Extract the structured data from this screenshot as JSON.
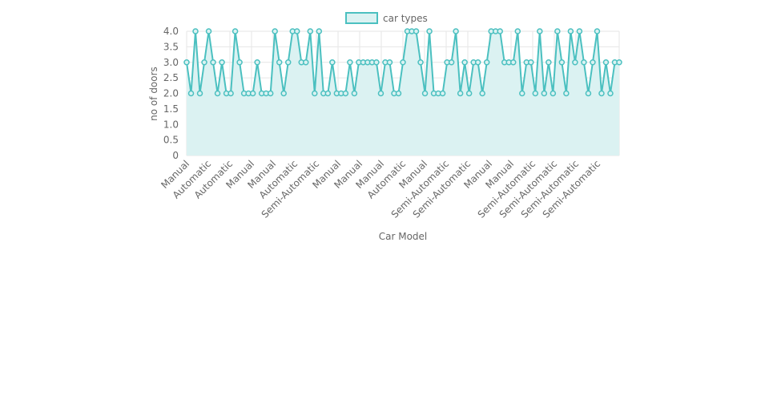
{
  "chart_data": {
    "type": "area",
    "legend": {
      "label": "car types",
      "position": "top-center"
    },
    "xlabel": "Car Model",
    "ylabel": "no of doors",
    "ylim": [
      0,
      4
    ],
    "yticks": [
      "0",
      "0.5",
      "1.0",
      "1.5",
      "2.0",
      "2.5",
      "3.0",
      "3.5",
      "4.0"
    ],
    "xtick_labels": [
      "Manual",
      "Automatic",
      "Automatic",
      "Manual",
      "Manual",
      "Automatic",
      "Semi-Automatic",
      "Manual",
      "Manual",
      "Manual",
      "Automatic",
      "Manual",
      "Semi-Automatic",
      "Semi-Automatic",
      "Manual",
      "Manual",
      "Semi-Automatic",
      "Semi-Automatic",
      "Semi-Automatic",
      "Semi-Automatic"
    ],
    "grid": true,
    "colors": {
      "line": "#4bc0c0",
      "fill": "#dbf2f2",
      "grid": "#e6e6e6"
    },
    "series": [
      {
        "name": "car types",
        "values": [
          3,
          2,
          4,
          2,
          3,
          4,
          3,
          2,
          3,
          2,
          2,
          4,
          3,
          2,
          2,
          2,
          3,
          2,
          2,
          2,
          4,
          3,
          2,
          3,
          4,
          4,
          3,
          3,
          4,
          2,
          4,
          2,
          2,
          3,
          2,
          2,
          2,
          3,
          2,
          3,
          3,
          3,
          3,
          3,
          2,
          3,
          3,
          2,
          2,
          3,
          4,
          4,
          4,
          3,
          2,
          4,
          2,
          2,
          2,
          3,
          3,
          4,
          2,
          3,
          2,
          3,
          3,
          2,
          3,
          4,
          4,
          4,
          3,
          3,
          3,
          4,
          2,
          3,
          3,
          2,
          4,
          2,
          3,
          2,
          4,
          3,
          2,
          4,
          3,
          4,
          3,
          2,
          3,
          4,
          2,
          3,
          2,
          3,
          3
        ]
      }
    ]
  }
}
